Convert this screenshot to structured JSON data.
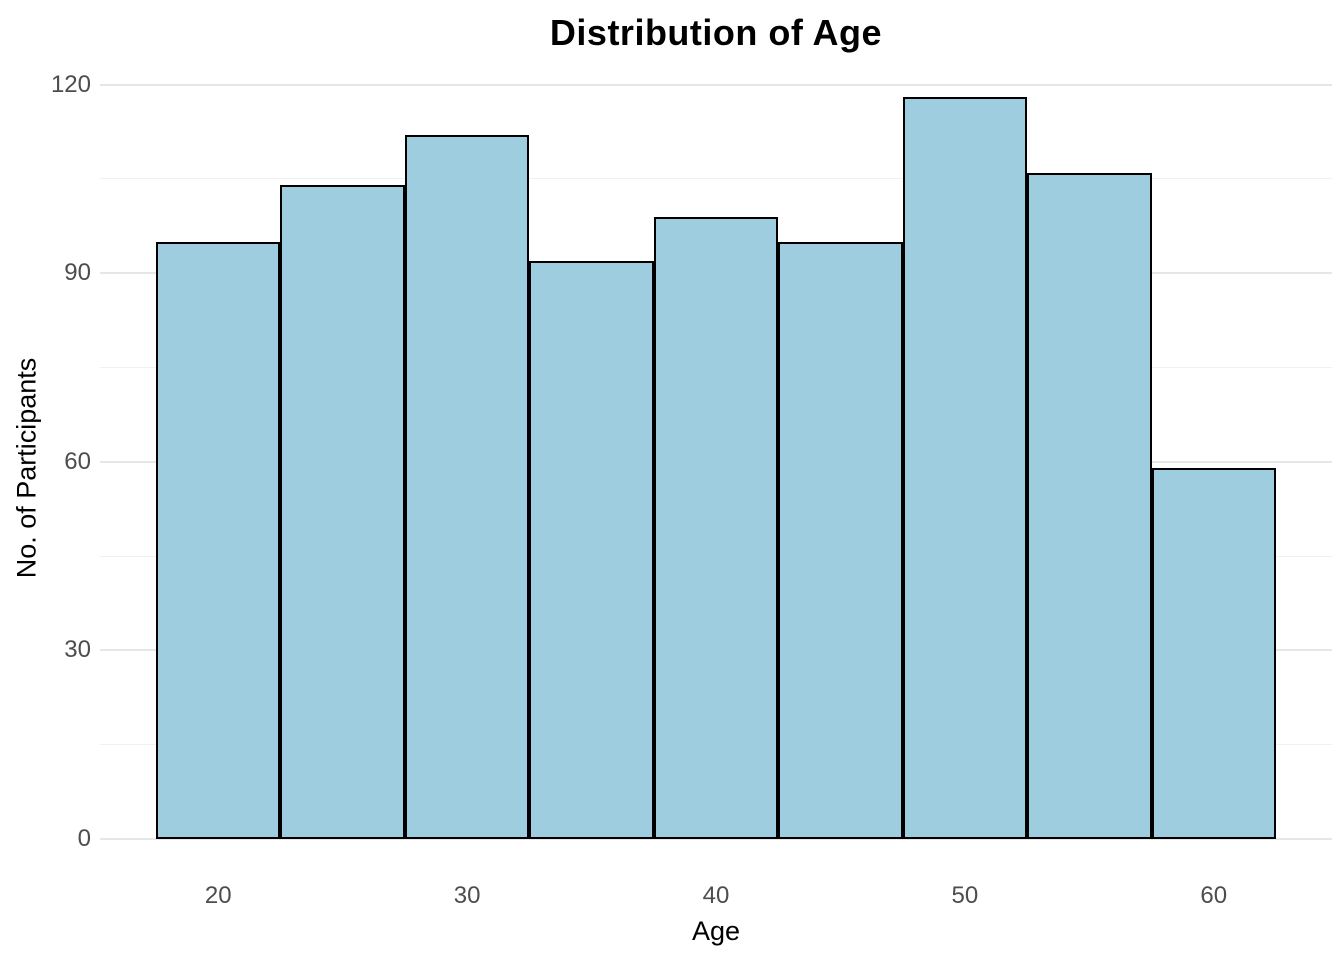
{
  "chart_data": {
    "type": "bar",
    "subtype": "histogram",
    "title": "Distribution of Age",
    "xlabel": "Age",
    "ylabel": "No. of Participants",
    "bin_edges": [
      17.5,
      22.5,
      27.5,
      32.5,
      37.5,
      42.5,
      47.5,
      52.5,
      57.5,
      62.5
    ],
    "bin_centers": [
      20,
      25,
      30,
      35,
      40,
      45,
      50,
      55,
      60
    ],
    "values": [
      95,
      104,
      112,
      92,
      99,
      95,
      118,
      106,
      59
    ],
    "x_ticks": [
      20,
      30,
      40,
      50,
      60
    ],
    "y_ticks": [
      0,
      30,
      60,
      90,
      120
    ],
    "y_minor_gridlines": [
      15,
      45,
      75,
      105
    ],
    "xlim": [
      15.25,
      64.75
    ],
    "ylim": [
      -5.9,
      123.9
    ],
    "grid": "horizontal-only",
    "legend": "none",
    "colors": {
      "bar_fill": "#9DCDDE",
      "bar_border": "#000000",
      "grid_major": "#E6E6E6",
      "grid_minor": "#F0F0F0",
      "tick_label": "#4D4D4D",
      "axis_title": "#000000",
      "title": "#000000",
      "background": "#FFFFFF"
    }
  }
}
